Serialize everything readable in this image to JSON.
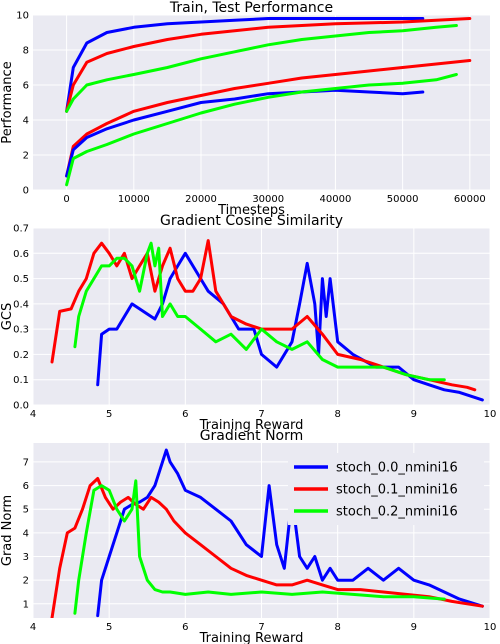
{
  "chart_data": [
    {
      "type": "line",
      "title": "Train, Test Performance",
      "xlabel": "Timesteps",
      "ylabel": "Performance",
      "xlim": [
        -5000,
        63000
      ],
      "ylim": [
        0,
        10
      ],
      "xticks": [
        0,
        10000,
        20000,
        30000,
        40000,
        50000,
        60000
      ],
      "yticks": [
        0,
        2,
        4,
        6,
        8,
        10
      ],
      "grid": true,
      "series": [
        {
          "color": "#0000ff",
          "x": [
            0,
            1000,
            3000,
            6000,
            10000,
            15000,
            20000,
            25000,
            30000,
            35000,
            40000,
            45000,
            50000,
            53000
          ],
          "y": [
            4.5,
            7.0,
            8.4,
            9.0,
            9.3,
            9.5,
            9.6,
            9.7,
            9.8,
            9.8,
            9.8,
            9.8,
            9.8,
            9.8
          ]
        },
        {
          "color": "#ff0000",
          "x": [
            0,
            1000,
            3000,
            6000,
            10000,
            15000,
            20000,
            25000,
            30000,
            35000,
            40000,
            45000,
            50000,
            55000,
            60000
          ],
          "y": [
            4.5,
            6.0,
            7.3,
            7.8,
            8.2,
            8.6,
            8.9,
            9.1,
            9.3,
            9.4,
            9.5,
            9.55,
            9.6,
            9.7,
            9.8
          ]
        },
        {
          "color": "#00ff00",
          "x": [
            0,
            1000,
            3000,
            6000,
            10000,
            15000,
            20000,
            25000,
            30000,
            35000,
            40000,
            45000,
            50000,
            55000,
            58000
          ],
          "y": [
            4.5,
            5.2,
            6.0,
            6.3,
            6.6,
            7.0,
            7.5,
            7.9,
            8.3,
            8.6,
            8.8,
            9.0,
            9.1,
            9.3,
            9.4
          ]
        },
        {
          "color": "#ff0000",
          "x": [
            0,
            1000,
            3000,
            6000,
            10000,
            15000,
            20000,
            25000,
            30000,
            35000,
            40000,
            45000,
            50000,
            55000,
            60000
          ],
          "y": [
            0.8,
            2.5,
            3.2,
            3.8,
            4.5,
            5.0,
            5.4,
            5.8,
            6.1,
            6.4,
            6.6,
            6.8,
            7.0,
            7.2,
            7.4
          ]
        },
        {
          "color": "#0000ff",
          "x": [
            0,
            1000,
            3000,
            6000,
            10000,
            15000,
            20000,
            25000,
            30000,
            35000,
            40000,
            45000,
            50000,
            53000
          ],
          "y": [
            0.8,
            2.3,
            3.0,
            3.5,
            4.0,
            4.5,
            5.0,
            5.2,
            5.5,
            5.6,
            5.7,
            5.6,
            5.5,
            5.6
          ]
        },
        {
          "color": "#00ff00",
          "x": [
            0,
            1000,
            3000,
            6000,
            10000,
            15000,
            20000,
            25000,
            30000,
            35000,
            40000,
            45000,
            50000,
            55000,
            58000
          ],
          "y": [
            0.3,
            1.8,
            2.2,
            2.6,
            3.2,
            3.8,
            4.4,
            4.9,
            5.3,
            5.6,
            5.8,
            6.0,
            6.1,
            6.3,
            6.6
          ]
        }
      ]
    },
    {
      "type": "line",
      "title": "Gradient Cosine Similarity",
      "xlabel": "Training Reward",
      "ylabel": "GCS",
      "xlim": [
        4,
        10
      ],
      "ylim": [
        0,
        0.7
      ],
      "xticks": [
        4,
        5,
        6,
        7,
        8,
        9,
        10
      ],
      "yticks": [
        0.0,
        0.1,
        0.2,
        0.3,
        0.4,
        0.5,
        0.6,
        0.7
      ],
      "grid": true,
      "series": [
        {
          "color": "#0000ff",
          "x": [
            4.85,
            4.9,
            5.0,
            5.1,
            5.2,
            5.3,
            5.4,
            5.5,
            5.6,
            5.7,
            5.8,
            5.9,
            6.0,
            6.1,
            6.2,
            6.3,
            6.5,
            6.7,
            6.9,
            7.0,
            7.2,
            7.4,
            7.5,
            7.6,
            7.7,
            7.75,
            7.8,
            7.85,
            7.9,
            8.0,
            8.2,
            8.5,
            8.8,
            9.0,
            9.2,
            9.4,
            9.6,
            9.8,
            9.9
          ],
          "y": [
            0.08,
            0.28,
            0.3,
            0.3,
            0.35,
            0.4,
            0.38,
            0.36,
            0.34,
            0.4,
            0.5,
            0.55,
            0.6,
            0.55,
            0.5,
            0.45,
            0.4,
            0.3,
            0.3,
            0.2,
            0.15,
            0.25,
            0.4,
            0.56,
            0.4,
            0.2,
            0.5,
            0.35,
            0.5,
            0.25,
            0.2,
            0.15,
            0.15,
            0.1,
            0.08,
            0.06,
            0.05,
            0.03,
            0.02
          ]
        },
        {
          "color": "#ff0000",
          "x": [
            4.25,
            4.35,
            4.5,
            4.6,
            4.7,
            4.8,
            4.9,
            5.0,
            5.1,
            5.2,
            5.3,
            5.4,
            5.5,
            5.6,
            5.7,
            5.8,
            5.9,
            6.0,
            6.1,
            6.2,
            6.3,
            6.4,
            6.5,
            6.6,
            6.8,
            7.0,
            7.2,
            7.4,
            7.6,
            7.8,
            8.0,
            8.3,
            8.6,
            8.9,
            9.2,
            9.5,
            9.7,
            9.8
          ],
          "y": [
            0.17,
            0.37,
            0.38,
            0.45,
            0.5,
            0.6,
            0.64,
            0.6,
            0.55,
            0.6,
            0.5,
            0.55,
            0.6,
            0.45,
            0.55,
            0.62,
            0.5,
            0.45,
            0.45,
            0.5,
            0.65,
            0.45,
            0.4,
            0.35,
            0.32,
            0.3,
            0.3,
            0.3,
            0.35,
            0.28,
            0.2,
            0.18,
            0.15,
            0.12,
            0.1,
            0.08,
            0.07,
            0.06
          ]
        },
        {
          "color": "#00ff00",
          "x": [
            4.55,
            4.6,
            4.7,
            4.8,
            4.9,
            5.0,
            5.1,
            5.2,
            5.3,
            5.4,
            5.5,
            5.55,
            5.6,
            5.65,
            5.7,
            5.8,
            5.9,
            6.0,
            6.2,
            6.4,
            6.6,
            6.8,
            7.0,
            7.2,
            7.4,
            7.6,
            7.8,
            8.0,
            8.3,
            8.6,
            8.9,
            9.2,
            9.4
          ],
          "y": [
            0.23,
            0.35,
            0.45,
            0.5,
            0.55,
            0.55,
            0.58,
            0.58,
            0.55,
            0.45,
            0.6,
            0.64,
            0.55,
            0.62,
            0.35,
            0.4,
            0.35,
            0.35,
            0.3,
            0.25,
            0.28,
            0.22,
            0.3,
            0.25,
            0.22,
            0.25,
            0.18,
            0.15,
            0.15,
            0.15,
            0.12,
            0.1,
            0.1
          ]
        }
      ]
    },
    {
      "type": "line",
      "title": "Gradient Norm",
      "xlabel": "Training Reward",
      "ylabel": "Grad Norm",
      "xlim": [
        4,
        10
      ],
      "ylim": [
        0.4,
        7.8
      ],
      "xticks": [
        4,
        5,
        6,
        7,
        8,
        9,
        10
      ],
      "yticks": [
        1,
        2,
        3,
        4,
        5,
        6,
        7
      ],
      "grid": true,
      "legend": {
        "position": "top-right",
        "entries": [
          {
            "name": "stoch_0.0_nmini16",
            "color": "#0000ff"
          },
          {
            "name": "stoch_0.1_nmini16",
            "color": "#ff0000"
          },
          {
            "name": "stoch_0.2_nmini16",
            "color": "#00ff00"
          }
        ]
      },
      "series": [
        {
          "name": "stoch_0.0_nmini16",
          "color": "#0000ff",
          "x": [
            4.85,
            4.9,
            5.0,
            5.1,
            5.2,
            5.3,
            5.4,
            5.5,
            5.6,
            5.7,
            5.75,
            5.8,
            5.9,
            6.0,
            6.2,
            6.4,
            6.6,
            6.8,
            7.0,
            7.1,
            7.2,
            7.3,
            7.4,
            7.5,
            7.6,
            7.7,
            7.8,
            7.9,
            8.0,
            8.2,
            8.4,
            8.6,
            8.8,
            9.0,
            9.2,
            9.4,
            9.6,
            9.8,
            9.9
          ],
          "y": [
            0.5,
            2.0,
            3.0,
            4.0,
            5.0,
            5.2,
            5.3,
            5.5,
            6.0,
            7.0,
            7.5,
            7.0,
            6.5,
            5.8,
            5.5,
            5.0,
            4.5,
            3.5,
            3.0,
            6.0,
            3.5,
            2.5,
            5.5,
            3.0,
            2.5,
            3.0,
            2.0,
            2.5,
            2.0,
            2.0,
            2.5,
            2.0,
            2.5,
            2.0,
            1.8,
            1.5,
            1.2,
            1.0,
            0.9
          ]
        },
        {
          "name": "stoch_0.1_nmini16",
          "color": "#ff0000",
          "x": [
            4.25,
            4.35,
            4.45,
            4.55,
            4.65,
            4.75,
            4.85,
            4.95,
            5.05,
            5.15,
            5.25,
            5.35,
            5.45,
            5.55,
            5.65,
            5.75,
            5.85,
            6.0,
            6.2,
            6.4,
            6.6,
            6.8,
            7.0,
            7.2,
            7.4,
            7.6,
            7.8,
            8.0,
            8.3,
            8.6,
            8.9,
            9.2,
            9.5,
            9.7,
            9.9
          ],
          "y": [
            0.4,
            2.5,
            4.0,
            4.2,
            5.0,
            6.0,
            6.3,
            5.5,
            5.0,
            5.3,
            5.5,
            5.2,
            5.0,
            5.5,
            5.3,
            5.0,
            4.5,
            4.0,
            3.5,
            3.0,
            2.5,
            2.2,
            2.0,
            1.8,
            1.8,
            2.0,
            1.8,
            1.6,
            1.6,
            1.5,
            1.4,
            1.3,
            1.1,
            1.0,
            0.9
          ]
        },
        {
          "name": "stoch_0.2_nmini16",
          "color": "#00ff00",
          "x": [
            4.55,
            4.6,
            4.7,
            4.8,
            4.9,
            5.0,
            5.1,
            5.2,
            5.3,
            5.35,
            5.4,
            5.5,
            5.6,
            5.7,
            5.8,
            6.0,
            6.3,
            6.6,
            7.0,
            7.4,
            7.8,
            8.2,
            8.6,
            9.0,
            9.4
          ],
          "y": [
            0.6,
            2.0,
            4.0,
            5.8,
            6.0,
            5.8,
            5.0,
            4.5,
            5.0,
            6.2,
            3.0,
            2.0,
            1.6,
            1.5,
            1.5,
            1.4,
            1.5,
            1.4,
            1.5,
            1.4,
            1.5,
            1.4,
            1.3,
            1.3,
            1.2
          ]
        }
      ]
    }
  ]
}
